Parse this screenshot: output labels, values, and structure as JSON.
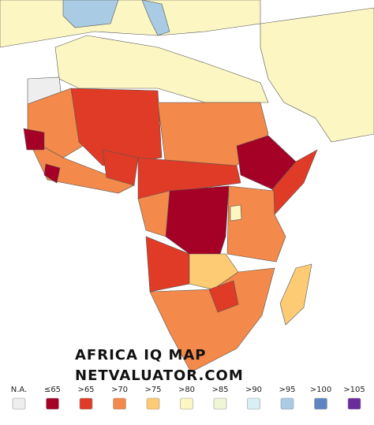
{
  "title": "AFRICA IQ MAP",
  "subtitle": "NETVALUATOR.COM",
  "legend": {
    "items": [
      {
        "label": "N.A.",
        "color": "#eeeeee"
      },
      {
        "label": "≤65",
        "color": "#a50026"
      },
      {
        "label": ">65",
        "color": "#df3b26"
      },
      {
        "label": ">70",
        "color": "#f3894a"
      },
      {
        "label": ">75",
        "color": "#fdcb73"
      },
      {
        "label": ">80",
        "color": "#fbf6c2"
      },
      {
        "label": ">85",
        "color": "#eef6d6"
      },
      {
        "label": ">90",
        "color": "#d8eff4"
      },
      {
        "label": ">95",
        "color": "#a9cbe3"
      },
      {
        "label": ">100",
        "color": "#5f86c3"
      },
      {
        "label": ">105",
        "color": "#6a2c9c"
      }
    ]
  }
}
